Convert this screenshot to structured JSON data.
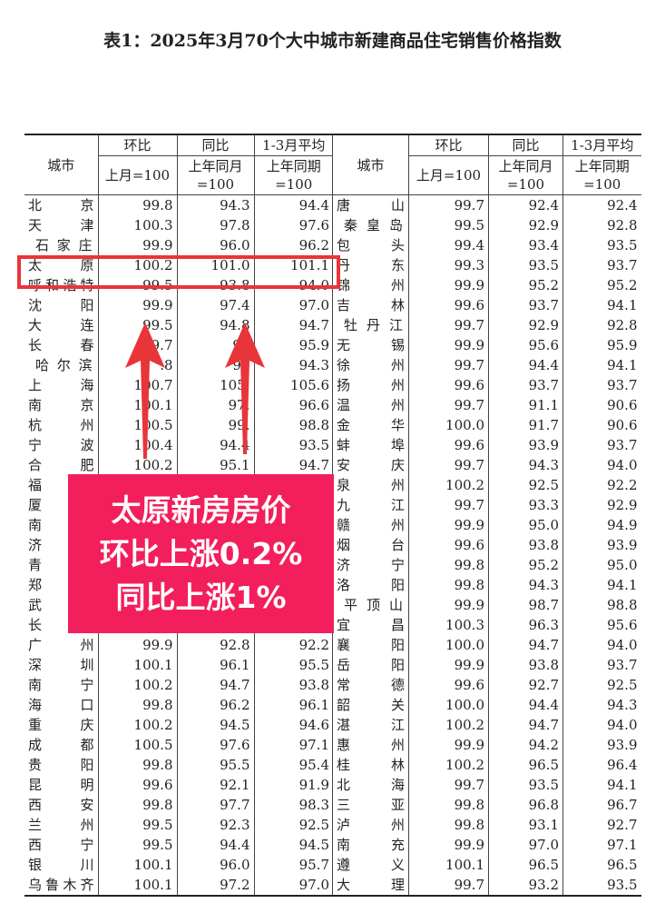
{
  "title": "表1：2025年3月70个大中城市新建商品住宅销售价格指数",
  "header": {
    "city": "城市",
    "mom": "环比",
    "yoy": "同比",
    "avg": "1-3月平均",
    "mom_base": "上月=100",
    "yoy_base_1": "上年同月",
    "yoy_base_2": "=100",
    "avg_base_1": "上年同期",
    "avg_base_2": "=100"
  },
  "left_rows": [
    [
      "北京",
      "99.8",
      "94.3",
      "94.4"
    ],
    [
      "天津",
      "100.3",
      "97.8",
      "97.6"
    ],
    [
      "石家庄",
      "99.9",
      "96.0",
      "96.2"
    ],
    [
      "太原",
      "100.2",
      "101.0",
      "101.1"
    ],
    [
      "呼和浩特",
      "99.5",
      "93.8",
      "94.0"
    ],
    [
      "沈阳",
      "99.9",
      "97.4",
      "97.0"
    ],
    [
      "大连",
      "99.5",
      "94.8",
      "94.7"
    ],
    [
      "长春",
      "9.7",
      "96",
      "95.9"
    ],
    [
      "哈尔滨",
      ".8",
      "94",
      "94.3"
    ],
    [
      "上海",
      "100.7",
      "105.",
      "105.6"
    ],
    [
      "南京",
      "100.1",
      "97.",
      "96.6"
    ],
    [
      "杭州",
      "100.5",
      "99.",
      "98.8"
    ],
    [
      "宁波",
      "100.4",
      "94.4",
      "93.5"
    ],
    [
      "合肥",
      "100.2",
      "95.1",
      "94.7"
    ],
    [
      "福",
      "",
      "",
      ""
    ],
    [
      "厦",
      "",
      "",
      ""
    ],
    [
      "南",
      "",
      "",
      ""
    ],
    [
      "济",
      "",
      "",
      ""
    ],
    [
      "青",
      "",
      "",
      ""
    ],
    [
      "郑",
      "",
      "",
      ""
    ],
    [
      "武",
      "",
      "",
      ""
    ],
    [
      "长",
      "",
      "",
      ""
    ],
    [
      "广州",
      "99.9",
      "92.8",
      "92.2"
    ],
    [
      "深圳",
      "100.1",
      "96.1",
      "95.5"
    ],
    [
      "南宁",
      "100.2",
      "94.7",
      "93.8"
    ],
    [
      "海口",
      "99.8",
      "96.2",
      "96.1"
    ],
    [
      "重庆",
      "100.2",
      "94.5",
      "94.6"
    ],
    [
      "成都",
      "100.5",
      "97.6",
      "97.1"
    ],
    [
      "贵阳",
      "99.8",
      "95.5",
      "95.4"
    ],
    [
      "昆明",
      "99.6",
      "92.1",
      "91.9"
    ],
    [
      "西安",
      "99.8",
      "97.7",
      "98.3"
    ],
    [
      "兰州",
      "99.5",
      "92.3",
      "92.5"
    ],
    [
      "西宁",
      "99.5",
      "94.4",
      "94.5"
    ],
    [
      "银川",
      "100.1",
      "96.0",
      "95.7"
    ],
    [
      "乌鲁木齐",
      "100.1",
      "97.2",
      "97.0"
    ]
  ],
  "right_rows": [
    [
      "唐山",
      "99.7",
      "92.4",
      "92.4"
    ],
    [
      "秦皇岛",
      "99.5",
      "92.9",
      "92.8"
    ],
    [
      "包头",
      "99.4",
      "93.4",
      "93.5"
    ],
    [
      "丹东",
      "99.3",
      "93.5",
      "93.7"
    ],
    [
      "锦州",
      "99.9",
      "95.2",
      "95.2"
    ],
    [
      "吉林",
      "99.6",
      "93.7",
      "94.1"
    ],
    [
      "牡丹江",
      "99.7",
      "92.9",
      "92.8"
    ],
    [
      "无锡",
      "99.9",
      "95.6",
      "95.9"
    ],
    [
      "徐州",
      "99.7",
      "94.4",
      "94.1"
    ],
    [
      "扬州",
      "99.6",
      "93.7",
      "93.7"
    ],
    [
      "温州",
      "99.7",
      "91.1",
      "90.6"
    ],
    [
      "金华",
      "100.0",
      "91.7",
      "90.6"
    ],
    [
      "蚌埠",
      "99.6",
      "93.9",
      "93.7"
    ],
    [
      "安庆",
      "99.7",
      "94.3",
      "94.0"
    ],
    [
      "泉州",
      "100.2",
      "92.5",
      "92.2"
    ],
    [
      "九江",
      "99.7",
      "93.3",
      "92.9"
    ],
    [
      "赣州",
      "99.9",
      "95.0",
      "94.9"
    ],
    [
      "烟台",
      "99.6",
      "93.8",
      "93.9"
    ],
    [
      "济宁",
      "99.8",
      "95.2",
      "95.0"
    ],
    [
      "洛阳",
      "99.8",
      "94.3",
      "94.1"
    ],
    [
      "平顶山",
      "99.9",
      "98.7",
      "98.8"
    ],
    [
      "宜昌",
      "100.3",
      "96.3",
      "95.6"
    ],
    [
      "襄阳",
      "100.0",
      "94.7",
      "94.0"
    ],
    [
      "岳阳",
      "99.9",
      "93.8",
      "93.7"
    ],
    [
      "常德",
      "99.6",
      "92.7",
      "92.5"
    ],
    [
      "韶关",
      "100.0",
      "94.4",
      "94.3"
    ],
    [
      "湛江",
      "100.2",
      "94.7",
      "94.0"
    ],
    [
      "惠州",
      "99.9",
      "94.2",
      "93.9"
    ],
    [
      "桂林",
      "100.2",
      "96.5",
      "96.4"
    ],
    [
      "北海",
      "99.7",
      "93.5",
      "94.1"
    ],
    [
      "三亚",
      "99.8",
      "96.8",
      "96.7"
    ],
    [
      "泸州",
      "99.8",
      "93.1",
      "92.7"
    ],
    [
      "南充",
      "99.9",
      "97.0",
      "97.1"
    ],
    [
      "遵义",
      "100.1",
      "96.5",
      "96.5"
    ],
    [
      "大理",
      "99.7",
      "93.2",
      "93.5"
    ]
  ],
  "highlight_city": "太原",
  "banner": {
    "line1": "太原新房房价",
    "line2": "环比上涨0.2%",
    "line3": "同比上涨1%"
  },
  "colors": {
    "highlight": "#e8353a",
    "banner": "#f31e5c",
    "arrow": "#e8353a"
  }
}
